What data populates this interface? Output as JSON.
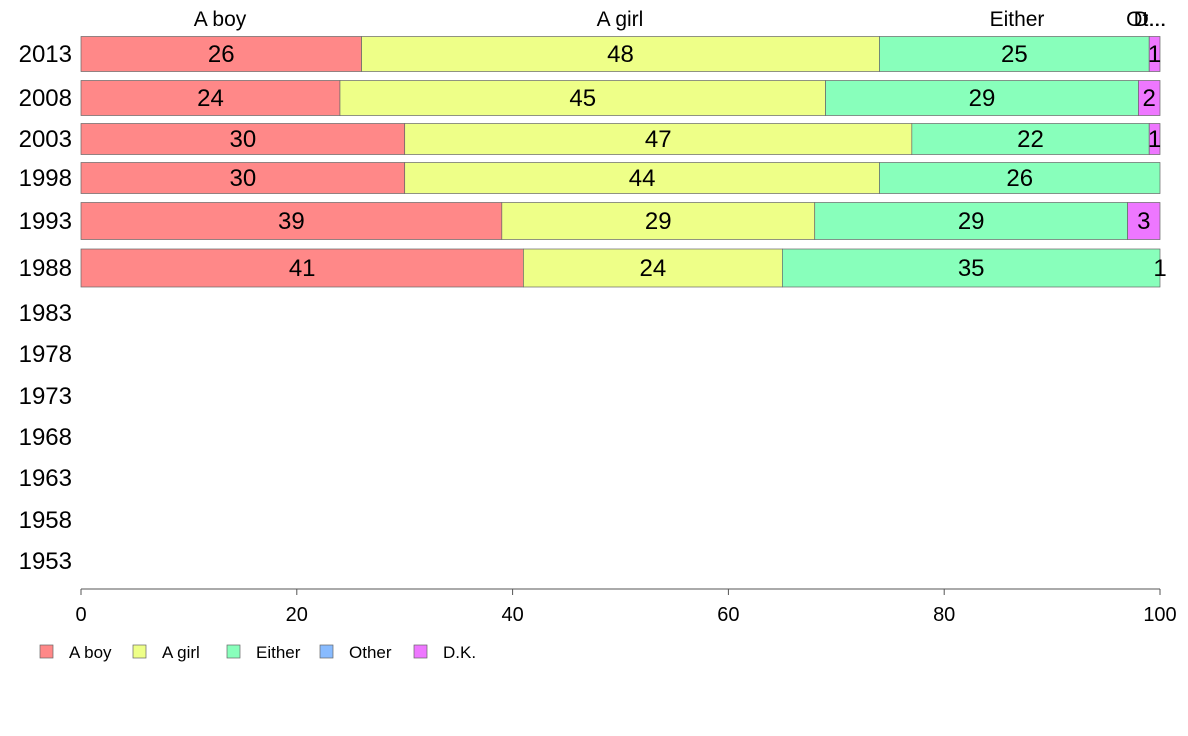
{
  "chart_data": {
    "type": "bar",
    "orientation": "horizontal",
    "stacked": true,
    "categories": [
      "2013",
      "2008",
      "2003",
      "1998",
      "1993",
      "1988",
      "1983",
      "1978",
      "1973",
      "1968",
      "1963",
      "1958",
      "1953"
    ],
    "series": [
      {
        "name": "A boy",
        "color": "#ff8888",
        "values": [
          26,
          24,
          30,
          30,
          39,
          41,
          null,
          null,
          null,
          null,
          null,
          null,
          null
        ]
      },
      {
        "name": "A girl",
        "color": "#eeff88",
        "values": [
          48,
          45,
          47,
          44,
          29,
          24,
          null,
          null,
          null,
          null,
          null,
          null,
          null
        ]
      },
      {
        "name": "Either",
        "color": "#88ffbb",
        "values": [
          25,
          29,
          22,
          26,
          29,
          35,
          null,
          null,
          null,
          null,
          null,
          null,
          null
        ]
      },
      {
        "name": "Other",
        "color": "#88bbff",
        "values": [
          0,
          0,
          0,
          0,
          0,
          0,
          null,
          null,
          null,
          null,
          null,
          null,
          null
        ]
      },
      {
        "name": "D.K.",
        "color": "#ee77ff",
        "values": [
          1,
          2,
          1,
          0,
          3,
          1,
          null,
          null,
          null,
          null,
          null,
          null,
          null
        ]
      }
    ],
    "column_headers": [
      "A boy",
      "A girl",
      "Either",
      "Ot...",
      "D..."
    ],
    "xlim": [
      0,
      100
    ],
    "xticks": [
      0,
      20,
      40,
      60,
      80,
      100
    ],
    "grid": false,
    "legend_position": "bottom-left"
  }
}
